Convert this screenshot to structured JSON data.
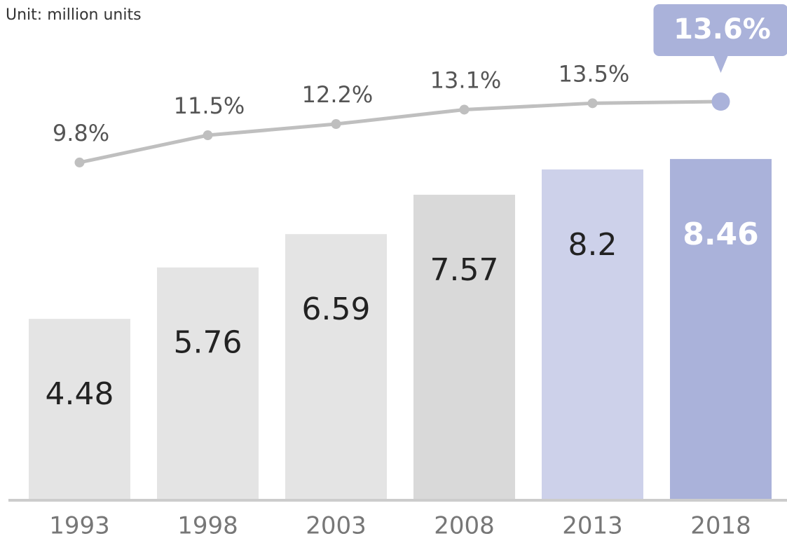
{
  "chart_data": {
    "type": "bar",
    "subtitle": "Unit: million units",
    "categories": [
      "1993",
      "1998",
      "2003",
      "2008",
      "2013",
      "2018"
    ],
    "ylim": [
      0,
      12.4
    ],
    "y2lim": [
      -11.2,
      19.9
    ],
    "series": [
      {
        "type": "bar",
        "values": [
          4.48,
          5.76,
          6.59,
          7.57,
          8.2,
          8.46
        ],
        "colors": [
          "#e4e4e4",
          "#e4e4e4",
          "#e4e4e4",
          "#d9d9d9",
          "#cdd1ea",
          "#aab2da"
        ]
      },
      {
        "type": "line",
        "axis": "y2",
        "values": [
          9.8,
          11.5,
          12.2,
          13.1,
          13.5,
          13.6
        ],
        "value_labels": [
          "9.8%",
          "11.5%",
          "12.2%",
          "13.1%",
          "13.5%",
          "13.6%"
        ],
        "color": "#bfbfbf",
        "highlight_color": "#aab2da"
      }
    ]
  }
}
